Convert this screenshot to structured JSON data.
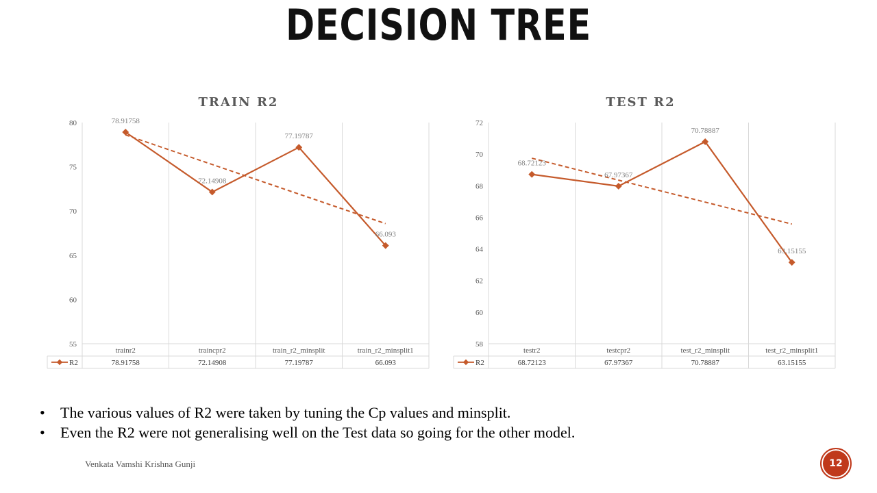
{
  "slide": {
    "title": "DECISION TREE",
    "bullets": [
      "The various values of R2 were taken by tuning the Cp  values and minsplit.",
      "Even the R2 were not generalising well on the Test data so going for the other model."
    ],
    "author": "Venkata Vamshi Krishna Gunji",
    "page_number": "12",
    "bullet_glyph": "•"
  },
  "chart_data": [
    {
      "type": "line",
      "title": "TRAIN R2",
      "categories": [
        "trainr2",
        "traincpr2",
        "train_r2_minsplit",
        "train_r2_minsplit1"
      ],
      "series": [
        {
          "name": "R2",
          "values": [
            78.91758,
            72.14908,
            77.19787,
            66.093
          ],
          "labels": [
            "78.91758",
            "72.14908",
            "77.19787",
            "66.093"
          ],
          "color": "#c55a2b"
        }
      ],
      "trendline": "linear",
      "ylim": [
        55,
        80
      ],
      "yticks": [
        55,
        60,
        65,
        70,
        75,
        80
      ],
      "grid": "vertical",
      "data_table": true
    },
    {
      "type": "line",
      "title": "TEST R2",
      "categories": [
        "testr2",
        "testcpr2",
        "test_r2_minsplit",
        "test_r2_minsplit1"
      ],
      "series": [
        {
          "name": "R2",
          "values": [
            68.72123,
            67.97367,
            70.78887,
            63.15155
          ],
          "labels": [
            "68.72123",
            "67.97367",
            "70.78887",
            "63.15155"
          ],
          "color": "#c55a2b"
        }
      ],
      "trendline": "linear",
      "ylim": [
        58,
        72
      ],
      "yticks": [
        58,
        60,
        62,
        64,
        66,
        68,
        70,
        72
      ],
      "grid": "vertical",
      "data_table": true
    }
  ]
}
